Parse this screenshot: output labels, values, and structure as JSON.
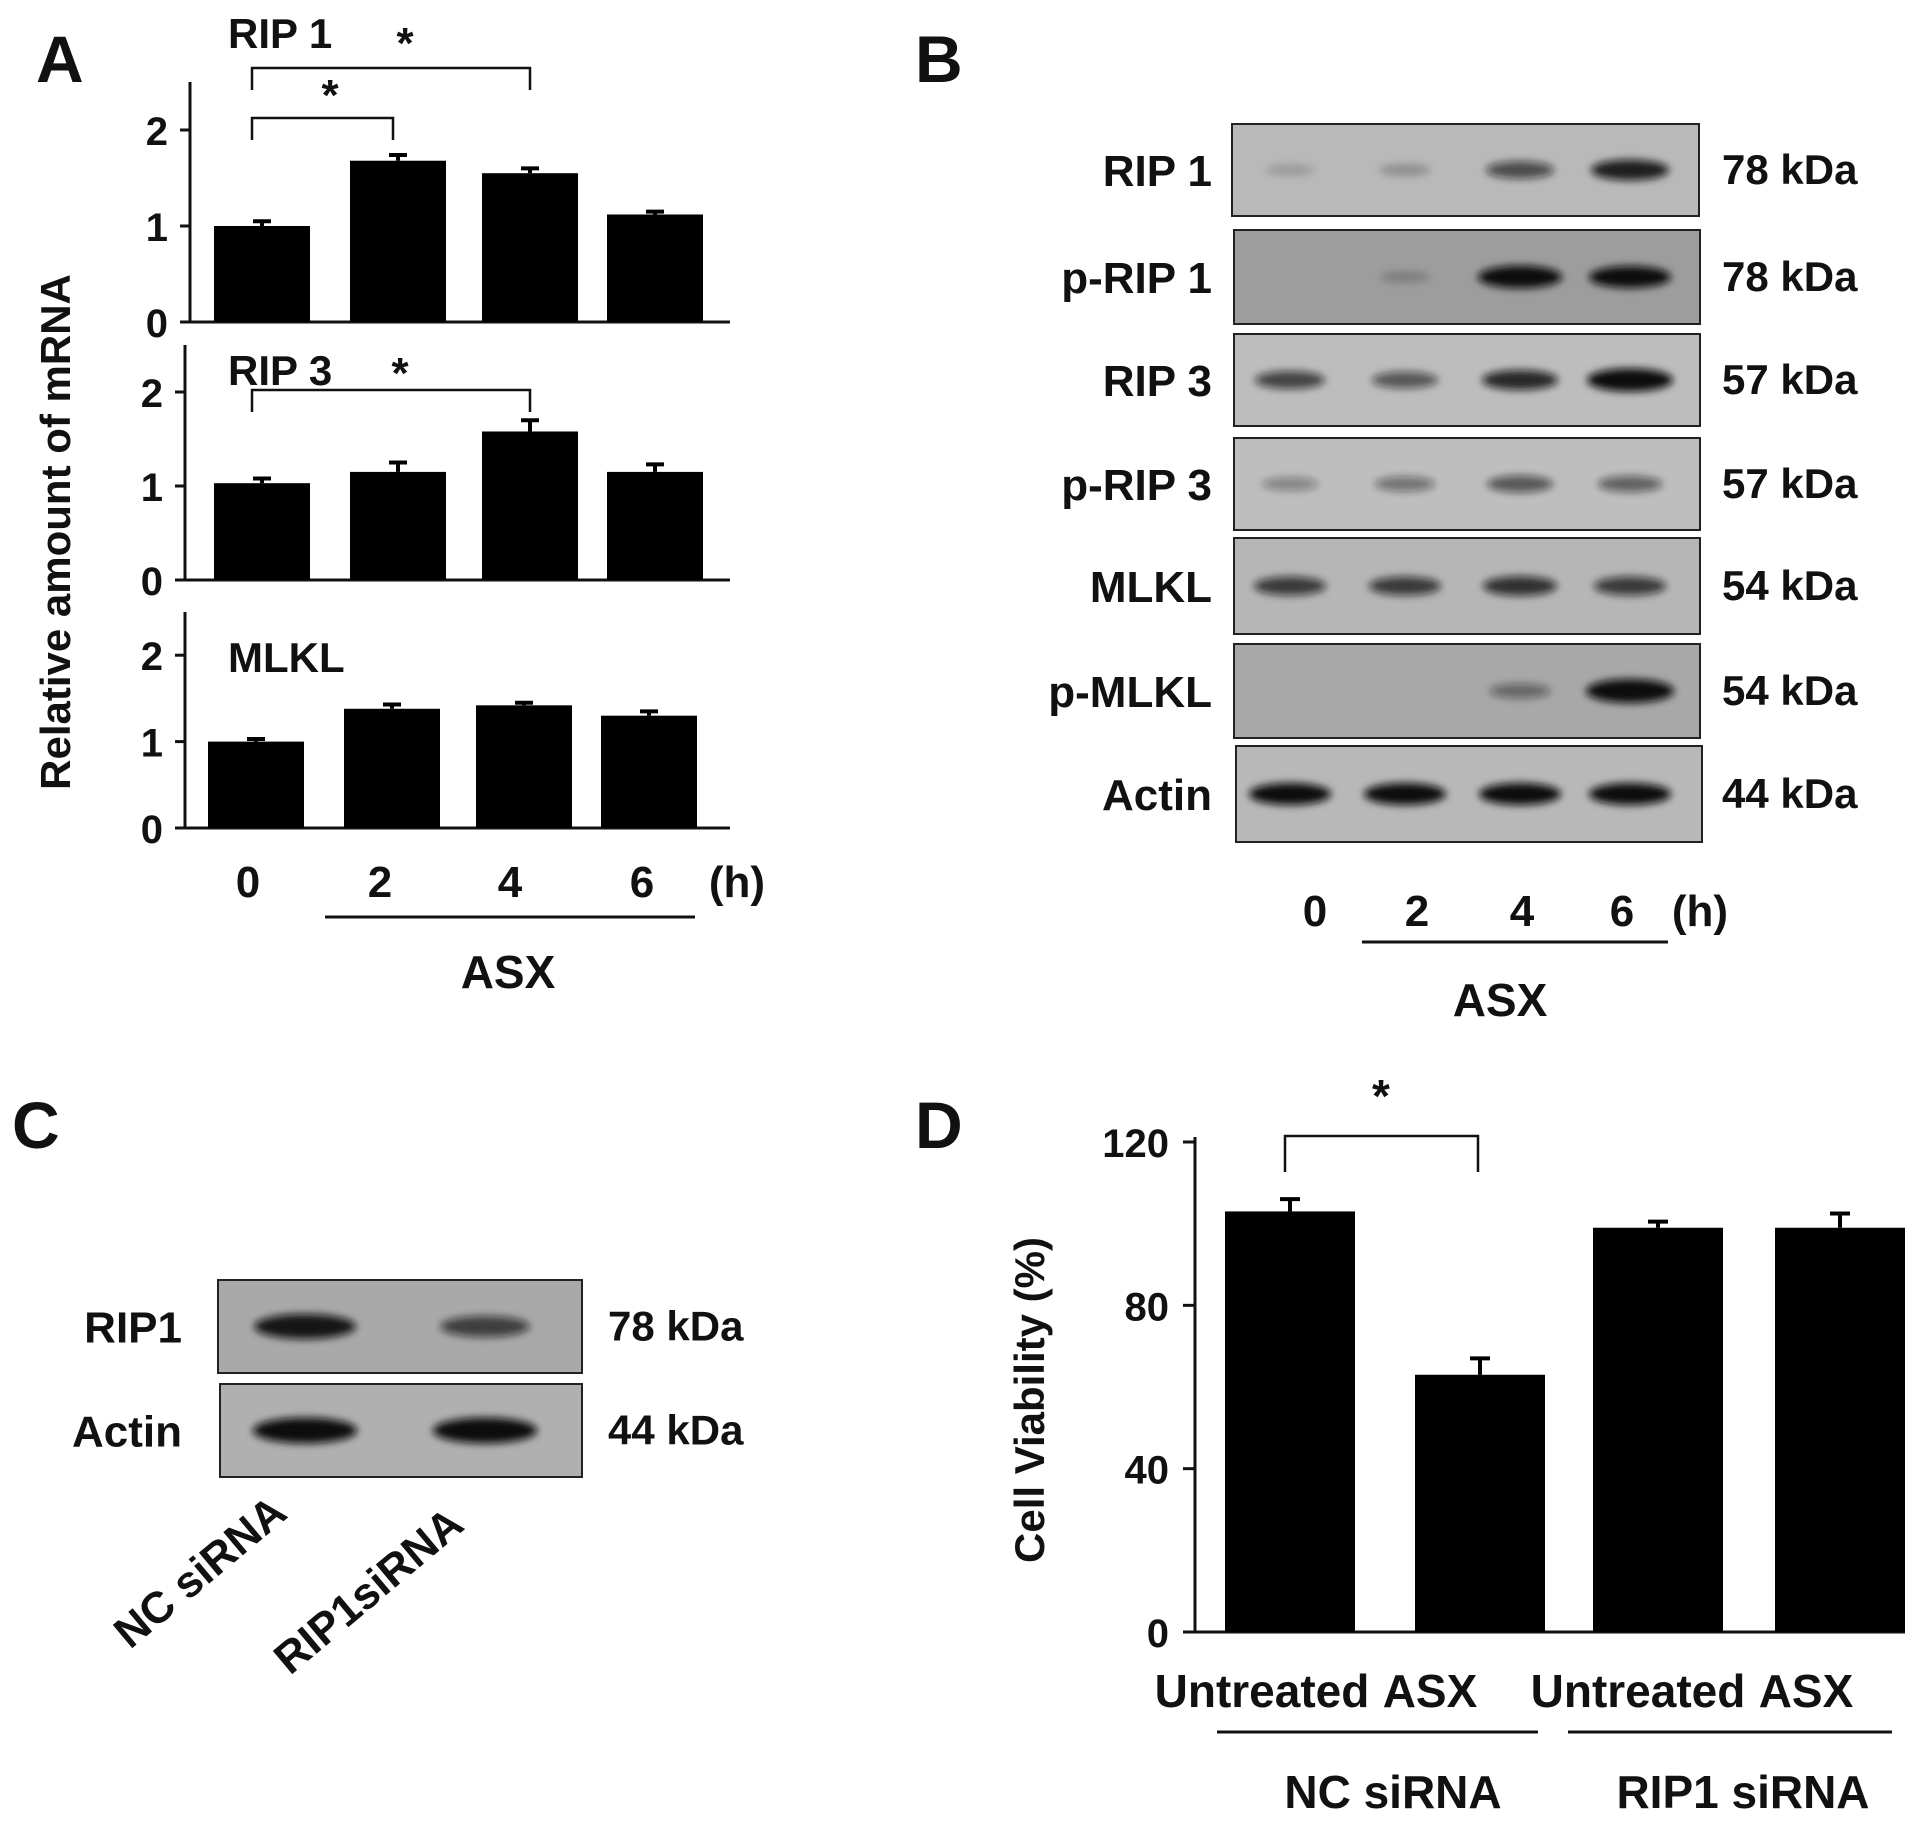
{
  "panel_letters": {
    "a": "A",
    "b": "B",
    "c": "C",
    "d": "D"
  },
  "chart_data": [
    {
      "id": "A",
      "type": "bar",
      "ylabel": "Relative amount of mRNA",
      "categories": [
        "0",
        "2",
        "4",
        "6"
      ],
      "x_unit": "(h)",
      "group_label": "ASX",
      "ylim": [
        0,
        2.5
      ],
      "yticks": [
        "0",
        "1",
        "2"
      ],
      "subplots": [
        {
          "label": "RIP 1",
          "values": [
            1.0,
            1.68,
            1.55,
            1.12
          ],
          "errors": [
            0.05,
            0.06,
            0.05,
            0.03
          ],
          "significance": [
            {
              "from": 0,
              "to": 1,
              "mark": "*"
            },
            {
              "from": 0,
              "to": 2,
              "mark": "*"
            }
          ]
        },
        {
          "label": "RIP 3",
          "values": [
            1.03,
            1.15,
            1.58,
            1.15
          ],
          "errors": [
            0.05,
            0.1,
            0.12,
            0.08
          ],
          "significance": [
            {
              "from": 0,
              "to": 2,
              "mark": "*"
            }
          ]
        },
        {
          "label": "MLKL",
          "values": [
            1.0,
            1.38,
            1.42,
            1.3
          ],
          "errors": [
            0.03,
            0.05,
            0.03,
            0.05
          ],
          "significance": []
        }
      ]
    },
    {
      "id": "D",
      "type": "bar",
      "ylabel": "Cell Viability (%)",
      "categories": [
        "Untreated",
        "ASX",
        "Untreated",
        "ASX"
      ],
      "values": [
        103,
        63,
        99,
        99
      ],
      "errors": [
        3,
        4,
        1.5,
        3.5
      ],
      "groups": [
        "NC siRNA",
        "RIP1 siRNA"
      ],
      "ylim": [
        0,
        120
      ],
      "yticks": [
        "0",
        "40",
        "80",
        "120"
      ],
      "significance": [
        {
          "from": 0,
          "to": 1,
          "mark": "*"
        }
      ]
    }
  ],
  "blot_b": {
    "rows": [
      {
        "label": "RIP 1",
        "size": "78 kDa",
        "intensity": [
          0.02,
          0.08,
          0.5,
          0.75
        ]
      },
      {
        "label": "p-RIP 1",
        "size": "78 kDa",
        "intensity": [
          0.0,
          0.05,
          0.9,
          0.85
        ]
      },
      {
        "label": "RIP 3",
        "size": "57 kDa",
        "intensity": [
          0.55,
          0.45,
          0.7,
          0.95
        ]
      },
      {
        "label": "p-RIP 3",
        "size": "57 kDa",
        "intensity": [
          0.2,
          0.3,
          0.45,
          0.4
        ]
      },
      {
        "label": "MLKL",
        "size": "54 kDa",
        "intensity": [
          0.6,
          0.6,
          0.65,
          0.6
        ]
      },
      {
        "label": "p-MLKL",
        "size": "54 kDa",
        "intensity": [
          0.0,
          0.0,
          0.3,
          1.0
        ]
      },
      {
        "label": "Actin",
        "size": "44 kDa",
        "intensity": [
          0.85,
          0.85,
          0.85,
          0.85
        ]
      }
    ],
    "lanes": [
      "0",
      "2",
      "4",
      "6"
    ],
    "lane_unit": "(h)",
    "group_label": "ASX"
  },
  "blot_c": {
    "rows": [
      {
        "label": "RIP1",
        "size": "78 kDa",
        "intensity": [
          0.8,
          0.55
        ]
      },
      {
        "label": "Actin",
        "size": "44 kDa",
        "intensity": [
          0.85,
          0.85
        ]
      }
    ],
    "lanes": [
      "NC siRNA",
      "RIP1siRNA"
    ]
  }
}
